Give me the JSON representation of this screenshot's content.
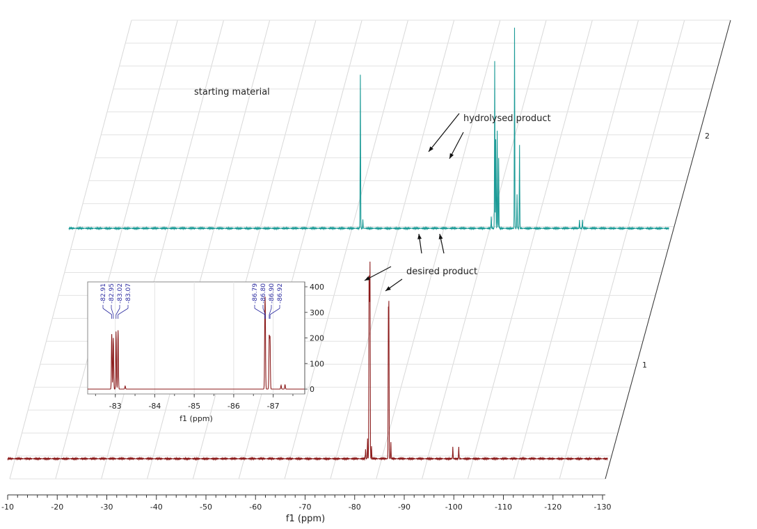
{
  "chart_data": {
    "type": "line",
    "title": "",
    "main": {
      "xlabel": "f1 (ppm)",
      "xticks": [
        -10,
        -20,
        -30,
        -40,
        -50,
        -60,
        -70,
        -80,
        -90,
        -100,
        -110,
        -120,
        -130
      ],
      "xlim": [
        -10,
        -130
      ],
      "series_labels": [
        "1",
        "2"
      ],
      "series": [
        {
          "name": "1",
          "color": "#8b1a1a",
          "peaks": [
            {
              "x": -82.2,
              "h": 0.05
            },
            {
              "x": -82.6,
              "h": 0.1
            },
            {
              "x": -82.9,
              "h": 0.88
            },
            {
              "x": -83.0,
              "h": 0.7
            },
            {
              "x": -83.1,
              "h": 0.95
            },
            {
              "x": -83.4,
              "h": 0.06
            },
            {
              "x": -86.8,
              "h": 0.72
            },
            {
              "x": -86.9,
              "h": 0.75
            },
            {
              "x": -87.3,
              "h": 0.08
            },
            {
              "x": -99.8,
              "h": 0.06
            },
            {
              "x": -101.0,
              "h": 0.06
            }
          ]
        },
        {
          "name": "2",
          "color": "#1a9a96",
          "peaks": [
            {
              "x": -68.8,
              "h": 0.55
            },
            {
              "x": -69.3,
              "h": 0.03
            },
            {
              "x": -95.9,
              "h": 0.6
            },
            {
              "x": -96.1,
              "h": 0.32
            },
            {
              "x": -96.4,
              "h": 0.35
            },
            {
              "x": -96.7,
              "h": 0.25
            },
            {
              "x": -95.2,
              "h": 0.04
            },
            {
              "x": -99.9,
              "h": 0.72
            },
            {
              "x": -100.4,
              "h": 0.12
            },
            {
              "x": -100.9,
              "h": 0.3
            },
            {
              "x": -113.0,
              "h": 0.03
            },
            {
              "x": -113.6,
              "h": 0.03
            }
          ]
        }
      ]
    },
    "inset": {
      "xlabel": "f1 (ppm)",
      "xticks": [
        -83,
        -84,
        -85,
        -86,
        -87
      ],
      "xlim": [
        -82.3,
        -87.8
      ],
      "yticks": [
        0,
        100,
        200,
        300,
        400
      ],
      "ylim": [
        -15,
        420
      ],
      "peak_labels": [
        "-82.91",
        "-82.95",
        "-83.02",
        "-83.07",
        "-86.79",
        "-86.80",
        "-86.90",
        "-86.92"
      ],
      "peaks": [
        {
          "x": -82.91,
          "y": 215
        },
        {
          "x": -82.95,
          "y": 200
        },
        {
          "x": -83.02,
          "y": 225
        },
        {
          "x": -83.07,
          "y": 230
        },
        {
          "x": -83.25,
          "y": 12
        },
        {
          "x": -86.79,
          "y": 220
        },
        {
          "x": -86.8,
          "y": 210
        },
        {
          "x": -86.9,
          "y": 200
        },
        {
          "x": -86.92,
          "y": 195
        },
        {
          "x": -87.2,
          "y": 15
        },
        {
          "x": -87.3,
          "y": 18
        }
      ]
    },
    "annotations": [
      {
        "text": "starting material"
      },
      {
        "text": "hydrolysed product"
      },
      {
        "text": "desired product"
      }
    ]
  }
}
